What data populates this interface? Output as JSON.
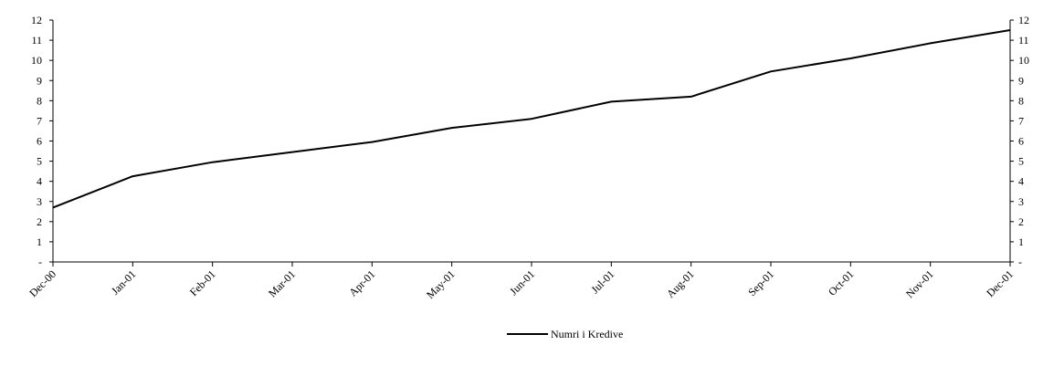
{
  "chart_data": {
    "type": "line",
    "categories": [
      "Dec-00",
      "Jan-01",
      "Feb-01",
      "Mar-01",
      "Apr-01",
      "May-01",
      "Jun-01",
      "Jul-01",
      "Aug-01",
      "Sep-01",
      "Oct-01",
      "Nov-01",
      "Dec-01"
    ],
    "series": [
      {
        "name": "Numri i Kredive",
        "color": "#000000",
        "values": [
          2.7,
          4.25,
          4.95,
          5.45,
          5.95,
          6.65,
          7.1,
          7.95,
          8.2,
          9.45,
          10.1,
          10.85,
          11.5
        ]
      }
    ],
    "ylim": [
      0,
      12
    ],
    "y_ticks": [
      "-",
      "1",
      "2",
      "3",
      "4",
      "5",
      "6",
      "7",
      "8",
      "9",
      "10",
      "11",
      "12"
    ],
    "secondary_y_axis": true,
    "grid": false,
    "legend_position": "bottom-center"
  }
}
